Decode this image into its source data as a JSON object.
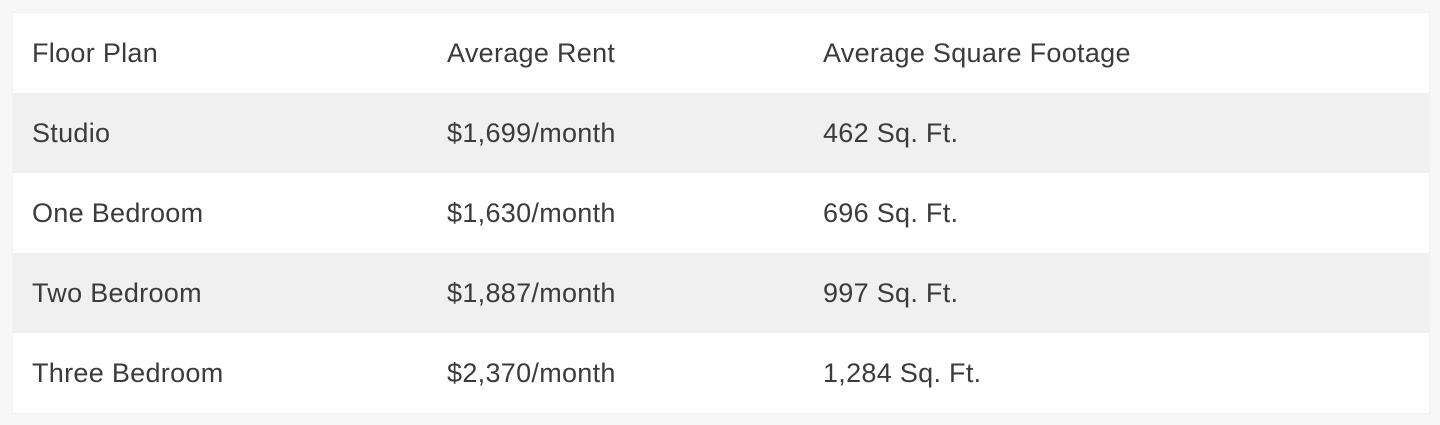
{
  "page": {
    "background_color": "#f7f7f7"
  },
  "table": {
    "background_color": "#ffffff",
    "stripe_color": "#f0f0f0",
    "text_color": "#3b3b3b",
    "headers": [
      "Floor Plan",
      "Average Rent",
      "Average Square Footage"
    ],
    "rows": [
      [
        "Studio",
        "$1,699/month",
        "462 Sq. Ft."
      ],
      [
        "One Bedroom",
        "$1,630/month",
        "696 Sq. Ft."
      ],
      [
        "Two Bedroom",
        "$1,887/month",
        "997 Sq. Ft."
      ],
      [
        "Three Bedroom",
        "$2,370/month",
        "1,284 Sq. Ft."
      ]
    ]
  },
  "chart_data": {
    "type": "table",
    "columns": [
      "Floor Plan",
      "Average Rent",
      "Average Square Footage"
    ],
    "rows": [
      [
        "Studio",
        "$1,699/month",
        "462 Sq. Ft."
      ],
      [
        "One Bedroom",
        "$1,630/month",
        "696 Sq. Ft."
      ],
      [
        "Two Bedroom",
        "$1,887/month",
        "997 Sq. Ft."
      ],
      [
        "Three Bedroom",
        "$2,370/month",
        "1,284 Sq. Ft."
      ]
    ],
    "floor_plans": [
      "Studio",
      "One Bedroom",
      "Two Bedroom",
      "Three Bedroom"
    ],
    "average_rent_usd_per_month": [
      1699,
      1630,
      1887,
      2370
    ],
    "average_square_footage_sqft": [
      462,
      696,
      997,
      1284
    ],
    "layout": {
      "striped_rows": true,
      "grid": false,
      "header_row": true
    }
  }
}
